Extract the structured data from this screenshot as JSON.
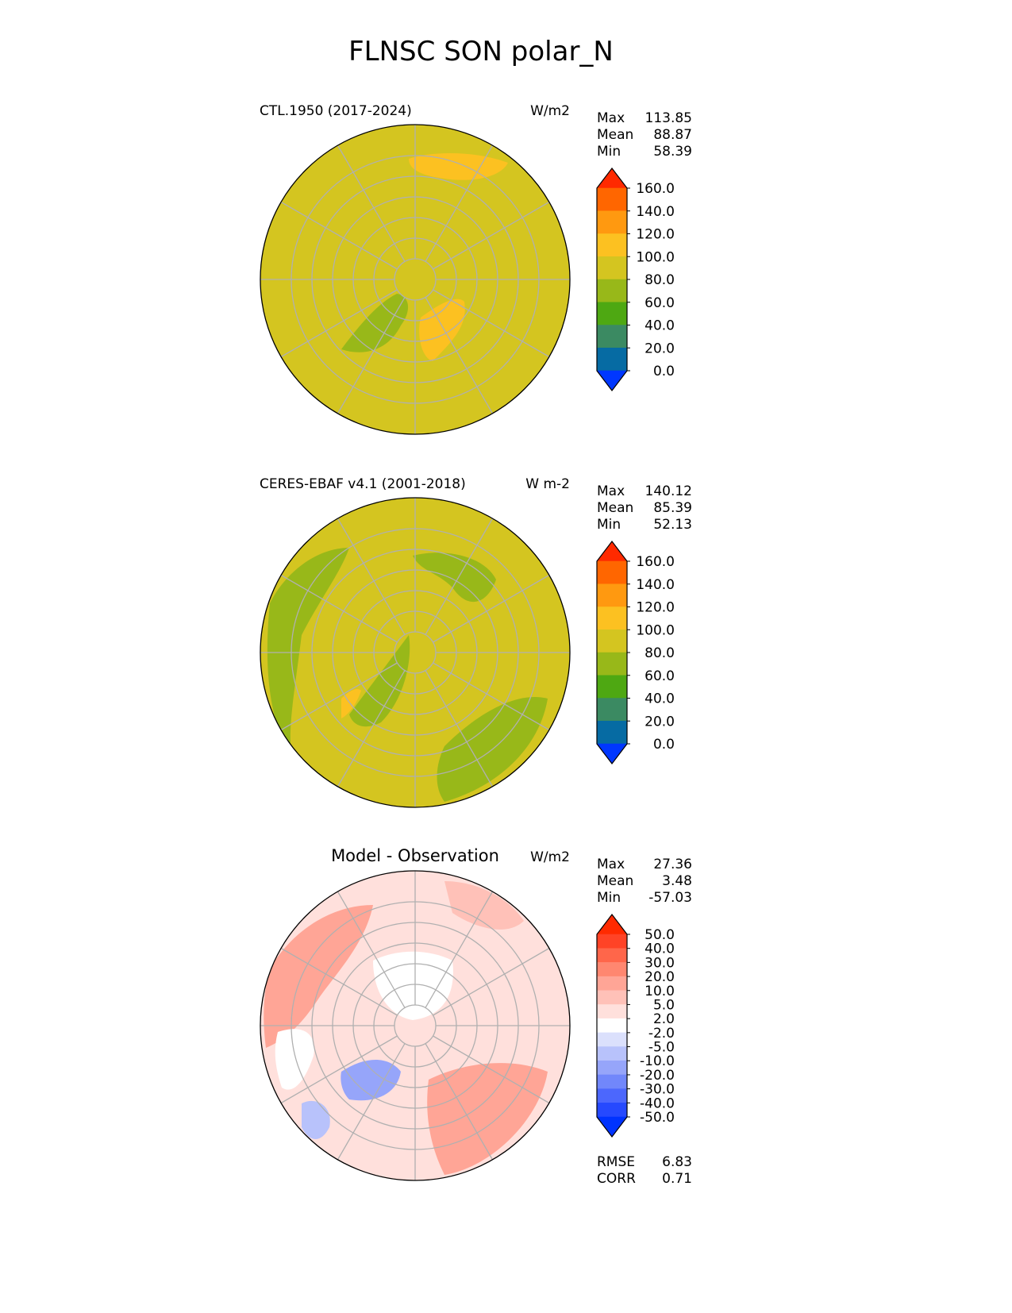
{
  "chart_data": {
    "type": "heatmap",
    "title": "FLNSC SON polar_N",
    "panels": [
      {
        "name": "model",
        "left_title": "CTL.1950 (2017-2024)",
        "units": "W/m2",
        "stats": [
          {
            "label": "Max",
            "value": "113.85"
          },
          {
            "label": "Mean",
            "value": "88.87"
          },
          {
            "label": "Min",
            "value": "58.39"
          }
        ],
        "colorbar": {
          "ticks": [
            "160.0",
            "140.0",
            "120.0",
            "100.0",
            "80.0",
            "60.0",
            "40.0",
            "20.0",
            "0.0"
          ],
          "colors": [
            "#ff2a00",
            "#ff6600",
            "#ff9910",
            "#fcc121",
            "#d4c520",
            "#98b819",
            "#4ea812",
            "#3b8a62",
            "#066ba3",
            "#0037ff"
          ]
        },
        "base_color": "#d4c520"
      },
      {
        "name": "observation",
        "left_title": "CERES-EBAF v4.1 (2001-2018)",
        "units": "W m-2",
        "stats": [
          {
            "label": "Max",
            "value": "140.12"
          },
          {
            "label": "Mean",
            "value": "85.39"
          },
          {
            "label": "Min",
            "value": "52.13"
          }
        ],
        "colorbar": {
          "ticks": [
            "160.0",
            "140.0",
            "120.0",
            "100.0",
            "80.0",
            "60.0",
            "40.0",
            "20.0",
            "0.0"
          ],
          "colors": [
            "#ff2a00",
            "#ff6600",
            "#ff9910",
            "#fcc121",
            "#d4c520",
            "#98b819",
            "#4ea812",
            "#3b8a62",
            "#066ba3",
            "#0037ff"
          ]
        },
        "base_color": "#d4c520"
      },
      {
        "name": "difference",
        "center_title": "Model - Observation",
        "units": "W/m2",
        "stats": [
          {
            "label": "Max",
            "value": "27.36"
          },
          {
            "label": "Mean",
            "value": "3.48"
          },
          {
            "label": "Min",
            "value": "-57.03"
          }
        ],
        "colorbar": {
          "ticks": [
            "50.0",
            "40.0",
            "30.0",
            "20.0",
            "10.0",
            "5.0",
            "2.0",
            "-2.0",
            "-5.0",
            "-10.0",
            "-20.0",
            "-30.0",
            "-40.0",
            "-50.0"
          ],
          "colors": [
            "#ff2a00",
            "#ff4326",
            "#ff664a",
            "#ff8770",
            "#ffa596",
            "#ffc1b8",
            "#ffe0dc",
            "#ffffff",
            "#dbe0fc",
            "#b8c2fb",
            "#96a5fa",
            "#7187fb",
            "#4c67fd",
            "#2649fe",
            "#0033ff"
          ]
        },
        "footer_stats": [
          {
            "label": "RMSE",
            "value": "6.83"
          },
          {
            "label": "CORR",
            "value": "0.71"
          }
        ],
        "base_color": "#ffe0dc"
      }
    ]
  }
}
